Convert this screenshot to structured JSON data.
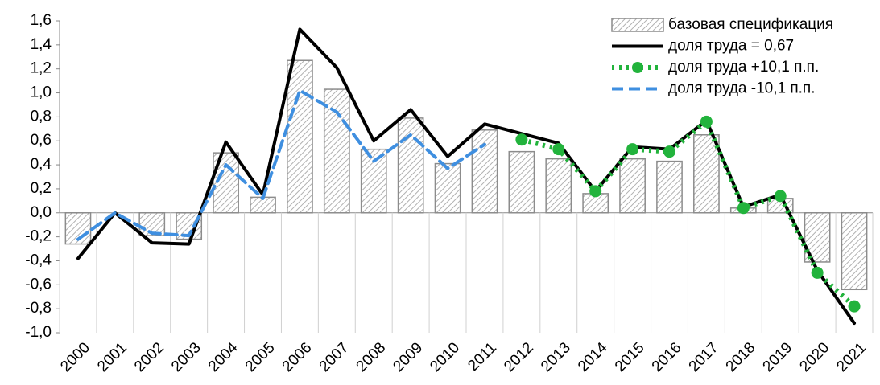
{
  "chart_data": {
    "type": "bar",
    "categories": [
      "2000",
      "2001",
      "2002",
      "2003",
      "2004",
      "2005",
      "2006",
      "2007",
      "2008",
      "2009",
      "2010",
      "2011",
      "2012",
      "2013",
      "2014",
      "2015",
      "2016",
      "2017",
      "2018",
      "2019",
      "2020",
      "2021"
    ],
    "series": [
      {
        "name": "базовая спецификация",
        "type": "bar",
        "color": "#8c8c8c",
        "values": [
          -0.26,
          0.0,
          -0.19,
          -0.22,
          0.5,
          0.13,
          1.27,
          1.03,
          0.53,
          0.79,
          0.41,
          0.69,
          0.51,
          0.45,
          0.16,
          0.45,
          0.43,
          0.65,
          0.04,
          0.12,
          -0.41,
          -0.64
        ]
      },
      {
        "name": "доля труда = 0,67",
        "type": "line",
        "color": "#000000",
        "dash": "solid",
        "marker": false,
        "values": [
          -0.38,
          0.0,
          -0.25,
          -0.26,
          0.59,
          0.15,
          1.53,
          1.21,
          0.6,
          0.86,
          0.47,
          0.74,
          0.66,
          0.58,
          0.18,
          0.55,
          0.53,
          0.77,
          0.05,
          0.15,
          -0.48,
          -0.92
        ]
      },
      {
        "name": "доля труда +10,1 п.п.",
        "type": "line",
        "color": "#22b33c",
        "dash": "dotted",
        "marker": true,
        "values": [
          null,
          null,
          null,
          null,
          null,
          null,
          null,
          null,
          null,
          null,
          null,
          null,
          0.61,
          0.53,
          0.18,
          0.53,
          0.51,
          0.76,
          0.04,
          0.14,
          -0.5,
          -0.78
        ]
      },
      {
        "name": "доля труда -10,1 п.п.",
        "type": "line",
        "color": "#3f8fe0",
        "dash": "dashed",
        "marker": false,
        "values": [
          -0.22,
          0.0,
          -0.17,
          -0.19,
          0.4,
          0.12,
          1.02,
          0.84,
          0.43,
          0.65,
          0.37,
          0.57,
          null,
          null,
          null,
          null,
          null,
          null,
          null,
          null,
          null,
          null
        ]
      }
    ],
    "ylim": [
      -1.0,
      1.6
    ],
    "yticks": [
      {
        "value": -1.0,
        "label": "-1,0"
      },
      {
        "value": -0.8,
        "label": "-0,8"
      },
      {
        "value": -0.6,
        "label": "-0,6"
      },
      {
        "value": -0.4,
        "label": "-0,4"
      },
      {
        "value": -0.2,
        "label": "-0,2"
      },
      {
        "value": 0.0,
        "label": "0,0"
      },
      {
        "value": 0.2,
        "label": "0,2"
      },
      {
        "value": 0.4,
        "label": "0,4"
      },
      {
        "value": 0.6,
        "label": "0,6"
      },
      {
        "value": 0.8,
        "label": "0,8"
      },
      {
        "value": 1.0,
        "label": "1,0"
      },
      {
        "value": 1.2,
        "label": "1,2"
      },
      {
        "value": 1.4,
        "label": "1,4"
      },
      {
        "value": 1.6,
        "label": "1,6"
      }
    ],
    "grid": false,
    "legend": "upper right"
  }
}
